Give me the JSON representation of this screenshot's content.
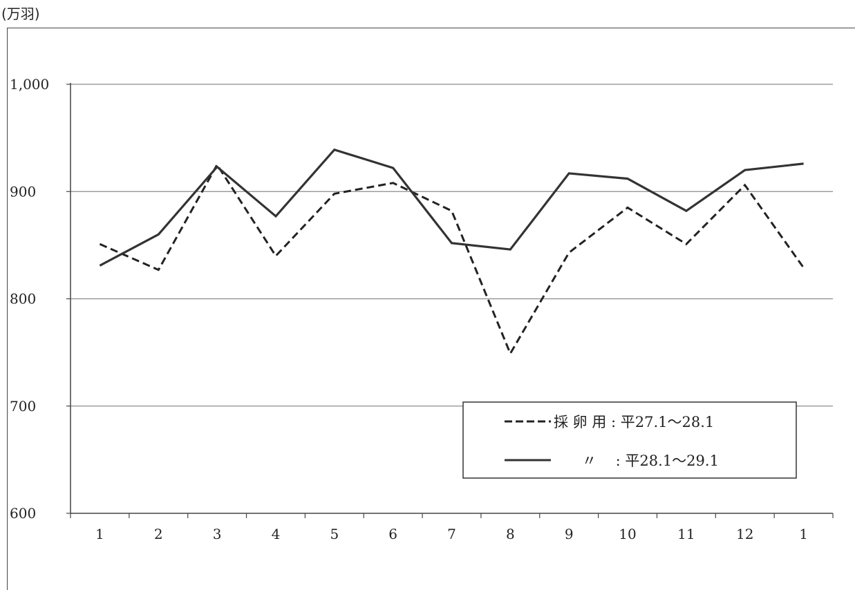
{
  "chart_data": {
    "type": "line",
    "unit_label": "(万羽)",
    "categories": [
      "1",
      "2",
      "3",
      "4",
      "5",
      "6",
      "7",
      "8",
      "9",
      "10",
      "11",
      "12",
      "1"
    ],
    "series": [
      {
        "name": "採 卵 用 : 平27.1～28.1",
        "style": "dashed",
        "color": "#222222",
        "values": [
          851,
          827,
          925,
          840,
          898,
          908,
          882,
          749,
          843,
          885,
          851,
          906,
          829
        ]
      },
      {
        "name": "〃　 : 平28.1～29.1",
        "style": "solid",
        "color": "#333333",
        "values": [
          831,
          860,
          923,
          877,
          939,
          922,
          852,
          846,
          917,
          912,
          882,
          920,
          926
        ]
      }
    ],
    "yticks": [
      "600",
      "700",
      "800",
      "900",
      "1,000"
    ],
    "ytick_values": [
      600,
      700,
      800,
      900,
      1000
    ],
    "ylim": [
      600,
      1000
    ],
    "grid": true,
    "legend_position": "lower-right"
  }
}
